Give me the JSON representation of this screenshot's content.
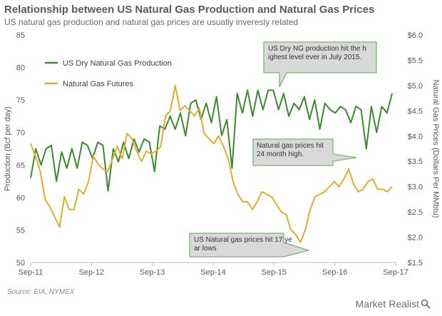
{
  "header": {
    "title": "Relationship between US Natural Gas Production and  Natural Gas Prices",
    "subtitle": "US natural gas production and  natural gas prices are usually inveresly related"
  },
  "source": "Source: EIA, NYMEX",
  "brand": {
    "name": "Market Realist",
    "icon": "magnifier-icon"
  },
  "colors": {
    "production": "#3a8a2e",
    "futures": "#e0ad2a",
    "callout_fill": "#d9d9d9",
    "callout_stroke": "#5aa84a",
    "axis_text": "#595959"
  },
  "chart_data": {
    "type": "line",
    "legend_position": "top-left",
    "grid": false,
    "ylabel": "Production (Bcf per day)",
    "ylabel_right": "Natural Gas Prices (Dollars Per MMbtu)",
    "ylim": [
      50,
      85
    ],
    "ylim_right": [
      1.5,
      6.0
    ],
    "x_ticks": [
      "Sep-11",
      "Sep-12",
      "Sep-13",
      "Sep-14",
      "Sep-15",
      "Sep-16",
      "Sep-17"
    ],
    "y_ticks": [
      "50",
      "55",
      "60",
      "65",
      "70",
      "75",
      "80",
      "85"
    ],
    "y_ticks_right": [
      "$1.5",
      "$2.0",
      "$2.5",
      "$3.0",
      "$3.5",
      "$4.0",
      "$4.5",
      "$5.0",
      "$5.5",
      "$6.0"
    ],
    "series": [
      {
        "name": "US Dry Natural Gas Production",
        "axis": "left",
        "values": [
          63.0,
          67.5,
          65.0,
          67.5,
          68.0,
          62.5,
          67.0,
          64.5,
          67.5,
          64.5,
          68.5,
          68.0,
          66.0,
          68.5,
          68.0,
          61.0,
          67.5,
          65.5,
          68.5,
          66.0,
          69.0,
          67.0,
          69.0,
          68.5,
          64.0,
          71.0,
          70.5,
          72.5,
          70.5,
          73.0,
          69.5,
          74.5,
          75.0,
          72.0,
          74.5,
          71.5,
          75.5,
          69.5,
          72.0,
          64.5,
          76.0,
          73.0,
          76.5,
          72.5,
          76.5,
          73.5,
          76.5,
          76.5,
          73.5,
          76.0,
          72.5,
          74.5,
          73.5,
          75.5,
          72.0,
          75.0,
          70.5,
          74.5,
          73.5,
          73.0,
          74.0,
          73.5,
          71.5,
          74.0,
          73.5,
          67.5,
          74.0,
          70.0,
          74.0,
          73.0,
          76.0
        ]
      },
      {
        "name": "Natural Gas Futures",
        "axis": "right",
        "values": [
          3.85,
          3.6,
          3.3,
          2.75,
          2.6,
          2.4,
          2.2,
          2.8,
          2.55,
          2.55,
          2.95,
          2.85,
          3.1,
          3.6,
          3.45,
          3.35,
          3.3,
          3.55,
          3.8,
          3.55,
          4.05,
          3.95,
          3.7,
          3.5,
          3.7,
          3.65,
          3.7,
          3.8,
          4.4,
          4.5,
          5.0,
          4.5,
          4.6,
          4.5,
          4.4,
          4.55,
          4.05,
          3.95,
          3.85,
          4.0,
          3.8,
          3.55,
          3.1,
          2.85,
          2.7,
          2.7,
          2.55,
          2.7,
          2.9,
          2.85,
          2.8,
          2.65,
          2.5,
          2.45,
          2.15,
          2.05,
          1.9,
          2.15,
          2.55,
          2.8,
          2.85,
          2.9,
          3.0,
          3.1,
          3.0,
          3.15,
          3.35,
          3.05,
          2.9,
          2.95,
          3.1,
          3.15,
          2.95,
          2.95,
          2.9,
          3.0
        ]
      }
    ],
    "annotations": [
      "US Dry NG production hit the highest level ever in July 2015.",
      "Natural gas prices hit 24 month high.",
      "US Natural gas prices hit 17 year lows"
    ]
  }
}
